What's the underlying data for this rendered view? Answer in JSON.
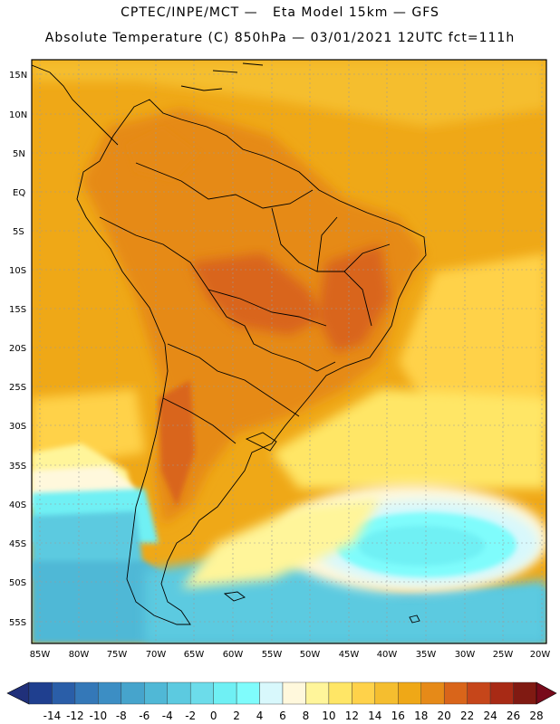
{
  "header": {
    "line1": "CPTEC/INPE/MCT —   Eta Model 15km — GFS",
    "line2": "Absolute Temperature (C) 850hPa — 03/01/2021 12UTC fct=111h"
  },
  "axes": {
    "lat_labels": [
      "15N",
      "10N",
      "5N",
      "EQ",
      "5S",
      "10S",
      "15S",
      "20S",
      "25S",
      "30S",
      "35S",
      "40S",
      "45S",
      "50S",
      "55S"
    ],
    "lon_labels": [
      "85W",
      "80W",
      "75W",
      "70W",
      "65W",
      "60W",
      "55W",
      "50W",
      "45W",
      "40W",
      "35W",
      "30W",
      "25W",
      "20W"
    ]
  },
  "colorbar": {
    "labels": [
      "-14",
      "-12",
      "-10",
      "-8",
      "-6",
      "-4",
      "-2",
      "0",
      "2",
      "4",
      "6",
      "8",
      "10",
      "12",
      "14",
      "16",
      "18",
      "20",
      "22",
      "24",
      "26",
      "28"
    ],
    "colors": [
      "#1f3f8f",
      "#2a5ea8",
      "#3478b8",
      "#3c8ec4",
      "#46a4cc",
      "#50b8d6",
      "#5ccae0",
      "#6cdcea",
      "#6ff0f4",
      "#7ffcfc",
      "#d8f8fc",
      "#fff8dc",
      "#fff59a",
      "#ffe666",
      "#ffd24a",
      "#f5be2f",
      "#efa817",
      "#e68a18",
      "#d9651a",
      "#c6461a",
      "#a82a15",
      "#801a12"
    ],
    "low_color": "#20307a",
    "high_color": "#780a1a"
  }
}
